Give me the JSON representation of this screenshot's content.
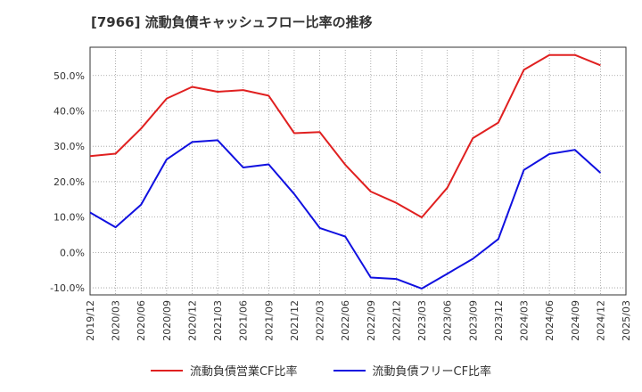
{
  "title": "[7966]  流動負債キャッシュフロー比率の推移",
  "colors": {
    "series0": "#e02020",
    "series1": "#1010e0",
    "grid": "#999999",
    "axis": "#333333"
  },
  "chart_data": {
    "type": "line",
    "title": "[7966]  流動負債キャッシュフロー比率の推移",
    "xlabel": "",
    "ylabel": "",
    "ylim": [
      -12,
      58
    ],
    "yticks": [
      -10,
      0,
      10,
      20,
      30,
      40,
      50
    ],
    "ytick_labels": [
      "-10.0%",
      "0.0%",
      "10.0%",
      "20.0%",
      "30.0%",
      "40.0%",
      "50.0%"
    ],
    "xtick_labels": [
      "2019/12",
      "2020/03",
      "2020/06",
      "2020/09",
      "2020/12",
      "2021/03",
      "2021/06",
      "2021/09",
      "2021/12",
      "2022/03",
      "2022/06",
      "2022/09",
      "2022/12",
      "2023/03",
      "2023/06",
      "2023/09",
      "2023/12",
      "2024/03",
      "2024/06",
      "2024/09",
      "2024/12",
      "2025/03"
    ],
    "x": [
      "2019/12",
      "2020/03",
      "2020/06",
      "2020/09",
      "2020/12",
      "2021/03",
      "2021/06",
      "2021/09",
      "2021/12",
      "2022/03",
      "2022/06",
      "2022/09",
      "2022/12",
      "2023/03",
      "2023/06",
      "2023/09",
      "2023/12",
      "2024/03",
      "2024/06",
      "2024/09",
      "2024/12"
    ],
    "grid": true,
    "legend_position": "bottom",
    "series": [
      {
        "name": "流動負債営業CF比率",
        "color": "#e02020",
        "values": [
          27.2,
          27.9,
          35.0,
          43.5,
          46.8,
          45.4,
          45.9,
          44.3,
          33.7,
          34.0,
          24.8,
          17.2,
          14.0,
          9.9,
          18.3,
          32.3,
          36.7,
          51.6,
          55.8,
          55.8,
          52.9
        ]
      },
      {
        "name": "流動負債フリーCF比率",
        "color": "#1010e0",
        "values": [
          11.3,
          7.1,
          13.5,
          26.3,
          31.2,
          31.7,
          24.0,
          24.9,
          16.5,
          6.9,
          4.5,
          -7.1,
          -7.5,
          -10.2,
          -6.0,
          -1.8,
          3.8,
          23.3,
          27.8,
          29.0,
          22.5
        ]
      }
    ]
  }
}
